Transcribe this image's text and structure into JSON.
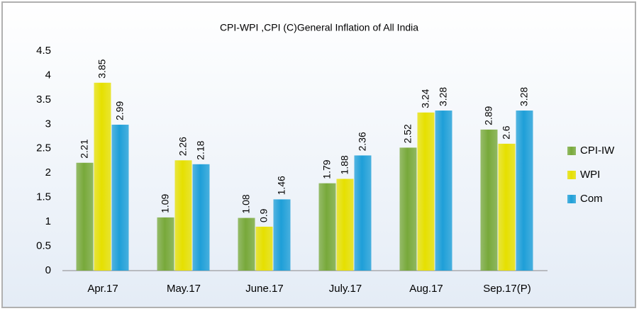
{
  "chart_data": {
    "type": "bar",
    "title": "CPI-WPI ,CPI (C)General Inflation of All India",
    "categories": [
      "Apr.17",
      "May.17",
      "June.17",
      "July.17",
      "Aug.17",
      "Sep.17(P)"
    ],
    "series": [
      {
        "name": "CPI-IW",
        "color": "#78a93a",
        "values": [
          2.21,
          1.09,
          1.08,
          1.79,
          2.52,
          2.89
        ]
      },
      {
        "name": "WPI",
        "color": "#e6e000",
        "values": [
          3.85,
          2.26,
          0.9,
          1.88,
          3.24,
          2.6
        ]
      },
      {
        "name": "Com",
        "color": "#1e9fd8",
        "values": [
          2.99,
          2.18,
          1.46,
          2.36,
          3.28,
          3.28
        ]
      }
    ],
    "ylim": [
      0,
      4.5
    ],
    "yticks": [
      0,
      0.5,
      1,
      1.5,
      2,
      2.5,
      3,
      3.5,
      4,
      4.5
    ],
    "grid": false,
    "legend": "right"
  }
}
